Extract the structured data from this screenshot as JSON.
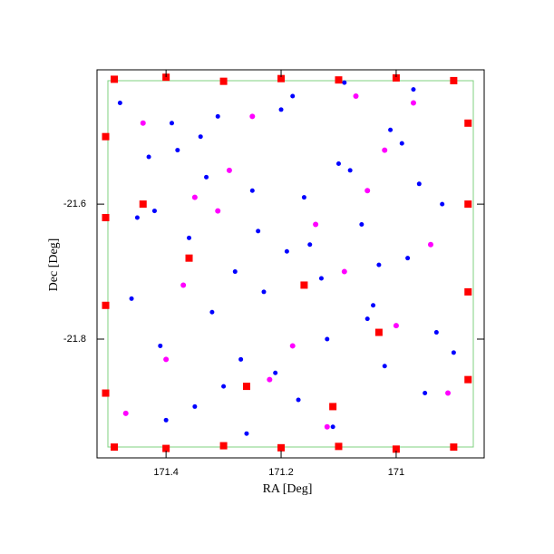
{
  "chart_data": {
    "type": "scatter",
    "xlabel": "RA [Deg]",
    "ylabel": "Dec [Deg]",
    "xlim": [
      171.52,
      170.847
    ],
    "ylim": [
      -21.976,
      -21.401
    ],
    "xticks": [
      171.4,
      171.2,
      171
    ],
    "yticks": [
      -21.6,
      -21.8
    ],
    "frame_color": "#000000",
    "inner_box_color": "#7fd07f",
    "series": [
      {
        "color": "#0000ff",
        "marker": "circle",
        "size": 2.5,
        "x": [
          171.48,
          171.45,
          171.41,
          171.38,
          171.35,
          171.31,
          171.28,
          171.25,
          171.21,
          171.18,
          171.15,
          171.11,
          171.08,
          171.05,
          171.01,
          170.98,
          170.95,
          170.92,
          171.46,
          171.4,
          171.33,
          171.27,
          171.2,
          171.13,
          171.06,
          170.99,
          170.93,
          171.43,
          171.36,
          171.3,
          171.23,
          171.16,
          171.09,
          171.02,
          170.96,
          171.47,
          171.39,
          171.32,
          171.24,
          171.17,
          171.1,
          171.03,
          170.97,
          170.9,
          171.42,
          171.34,
          171.26,
          171.19,
          171.12,
          171.04
        ],
        "values": [
          -21.45,
          -21.62,
          -21.81,
          -21.52,
          -21.9,
          -21.47,
          -21.7,
          -21.58,
          -21.85,
          -21.44,
          -21.66,
          -21.93,
          -21.55,
          -21.77,
          -21.49,
          -21.68,
          -21.88,
          -21.6,
          -21.74,
          -21.92,
          -21.56,
          -21.83,
          -21.46,
          -21.71,
          -21.63,
          -21.51,
          -21.79,
          -21.53,
          -21.65,
          -21.87,
          -21.73,
          -21.59,
          -21.42,
          -21.84,
          -21.57,
          -21.91,
          -21.48,
          -21.76,
          -21.64,
          -21.89,
          -21.54,
          -21.69,
          -21.43,
          -21.82,
          -21.61,
          -21.5,
          -21.94,
          -21.67,
          -21.8,
          -21.75
        ]
      },
      {
        "color": "#ff00ff",
        "marker": "circle",
        "size": 3,
        "x": [
          171.44,
          171.37,
          171.29,
          171.22,
          171.14,
          171.07,
          171.0,
          170.94,
          171.47,
          171.35,
          171.25,
          171.18,
          171.09,
          171.02,
          170.91,
          171.4,
          171.31,
          171.12,
          171.05,
          170.97
        ],
        "values": [
          -21.48,
          -21.72,
          -21.55,
          -21.86,
          -21.63,
          -21.44,
          -21.78,
          -21.66,
          -21.91,
          -21.59,
          -21.47,
          -21.81,
          -21.7,
          -21.52,
          -21.88,
          -21.83,
          -21.61,
          -21.93,
          -21.58,
          -21.45
        ]
      },
      {
        "color": "#ff0000",
        "marker": "square",
        "size": 4,
        "x": [
          171.49,
          171.4,
          171.3,
          171.2,
          171.1,
          171.0,
          170.9,
          171.49,
          171.4,
          171.3,
          171.2,
          171.1,
          171.0,
          170.9,
          171.505,
          171.505,
          171.505,
          171.505,
          170.875,
          170.875,
          170.875,
          170.875,
          171.36,
          171.16,
          171.26,
          171.44,
          171.03,
          171.11
        ],
        "values": [
          -21.415,
          -21.412,
          -21.418,
          -21.414,
          -21.416,
          -21.413,
          -21.417,
          -21.96,
          -21.962,
          -21.958,
          -21.961,
          -21.959,
          -21.963,
          -21.96,
          -21.5,
          -21.62,
          -21.75,
          -21.88,
          -21.48,
          -21.6,
          -21.73,
          -21.86,
          -21.68,
          -21.72,
          -21.87,
          -21.6,
          -21.79,
          -21.9
        ]
      }
    ]
  }
}
